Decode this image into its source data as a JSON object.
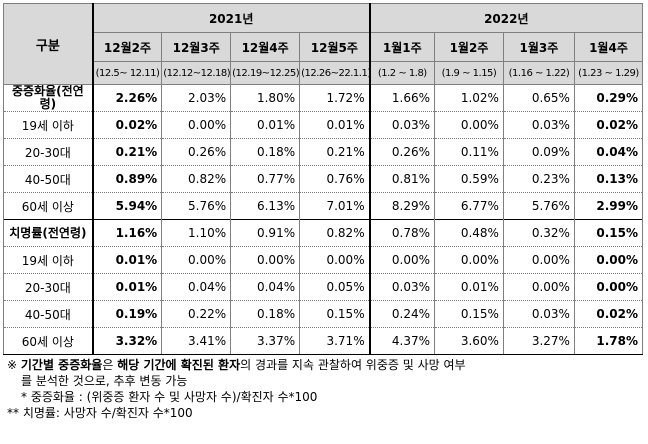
{
  "header": {
    "gubun": "구분",
    "years": [
      "2021년",
      "2022년"
    ],
    "weeks": [
      "12월2주",
      "12월3주",
      "12월4주",
      "12월5주",
      "1월1주",
      "1월2주",
      "1월3주",
      "1월4주"
    ],
    "ranges": [
      "(12.5~ 12.11)",
      "(12.12~12.18)",
      "(12.19~12.25)",
      "(12.26~22.1.1)",
      "(1.2 ~ 1.8)",
      "(1.9 ~ 1.15)",
      "(1.16 ~ 1.22)",
      "(1.23 ~ 1.29)"
    ]
  },
  "rows": [
    {
      "label": "중증화율(전연령)",
      "group": true,
      "values": [
        "2.26%",
        "2.03%",
        "1.80%",
        "1.72%",
        "1.66%",
        "1.02%",
        "0.65%",
        "0.29%"
      ]
    },
    {
      "label": "19세 이하",
      "values": [
        "0.02%",
        "0.00%",
        "0.01%",
        "0.01%",
        "0.03%",
        "0.00%",
        "0.03%",
        "0.02%"
      ]
    },
    {
      "label": "20-30대",
      "values": [
        "0.21%",
        "0.26%",
        "0.18%",
        "0.21%",
        "0.26%",
        "0.11%",
        "0.09%",
        "0.04%"
      ]
    },
    {
      "label": "40-50대",
      "values": [
        "0.89%",
        "0.82%",
        "0.77%",
        "0.76%",
        "0.81%",
        "0.59%",
        "0.23%",
        "0.13%"
      ]
    },
    {
      "label": "60세 이상",
      "values": [
        "5.94%",
        "5.76%",
        "6.13%",
        "7.01%",
        "8.29%",
        "6.77%",
        "5.76%",
        "2.99%"
      ]
    },
    {
      "label": "치명률(전연령)",
      "group": true,
      "values": [
        "1.16%",
        "1.10%",
        "0.91%",
        "0.82%",
        "0.78%",
        "0.48%",
        "0.32%",
        "0.15%"
      ]
    },
    {
      "label": "19세 이하",
      "values": [
        "0.01%",
        "0.00%",
        "0.00%",
        "0.00%",
        "0.00%",
        "0.00%",
        "0.00%",
        "0.00%"
      ]
    },
    {
      "label": "20-30대",
      "values": [
        "0.01%",
        "0.04%",
        "0.04%",
        "0.05%",
        "0.03%",
        "0.01%",
        "0.00%",
        "0.00%"
      ]
    },
    {
      "label": "40-50대",
      "values": [
        "0.19%",
        "0.22%",
        "0.18%",
        "0.15%",
        "0.24%",
        "0.15%",
        "0.03%",
        "0.02%"
      ]
    },
    {
      "label": "60세 이상",
      "values": [
        "3.32%",
        "3.41%",
        "3.37%",
        "3.71%",
        "4.37%",
        "3.60%",
        "3.27%",
        "1.78%"
      ]
    }
  ],
  "notes": {
    "line1_pre": "※ ",
    "line1_b1": "기간별 중증화율",
    "line1_mid": "은 ",
    "line1_b2": "해당 기간에 확진된 환자",
    "line1_post": "의 경과를 지속 관찰하여 위중증 및 사망 여부",
    "line2": "를 분석한 것으로, 추후 변동 가능",
    "line3": "* 중증화율 : (위중증 환자 수 및 사망자 수)/확진자 수*100",
    "line4": "** 치명률: 사망자 수/확진자 수*100"
  }
}
